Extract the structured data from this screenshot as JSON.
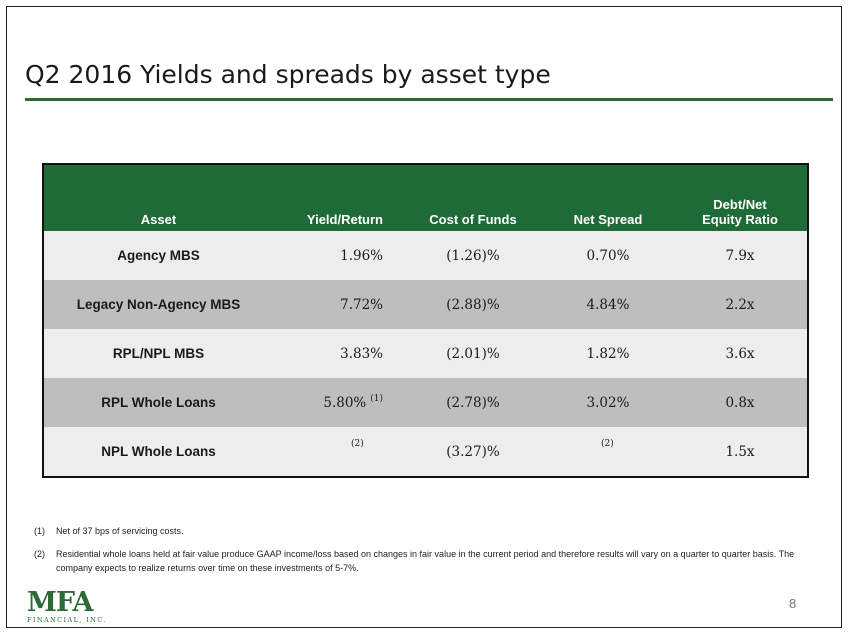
{
  "title": "Q2 2016 Yields and spreads by asset type",
  "table": {
    "headers": {
      "asset": "Asset",
      "yield": "Yield/Return",
      "cost": "Cost of Funds",
      "spread": "Net Spread",
      "debt_line1": "Debt/Net",
      "debt_line2": "Equity Ratio"
    },
    "rows": [
      {
        "asset": "Agency MBS",
        "yield": "1.96%",
        "yield_note": "",
        "cost": "(1.26)%",
        "spread": "0.70%",
        "spread_note": "",
        "debt": "7.9x"
      },
      {
        "asset": "Legacy Non-Agency MBS",
        "yield": "7.72%",
        "yield_note": "",
        "cost": "(2.88)%",
        "spread": "4.84%",
        "spread_note": "",
        "debt": "2.2x"
      },
      {
        "asset": "RPL/NPL MBS",
        "yield": "3.83%",
        "yield_note": "",
        "cost": "(2.01)%",
        "spread": "1.82%",
        "spread_note": "",
        "debt": "3.6x"
      },
      {
        "asset": "RPL Whole Loans",
        "yield": "5.80%",
        "yield_note": "(1)",
        "cost": "(2.78)%",
        "spread": "3.02%",
        "spread_note": "",
        "debt": "0.8x"
      },
      {
        "asset": "NPL Whole Loans",
        "yield": "",
        "yield_note": "(2)",
        "cost": "(3.27)%",
        "spread": "",
        "spread_note": "(2)",
        "debt": "1.5x"
      }
    ]
  },
  "footnotes": [
    {
      "index": "(1)",
      "text": "Net of 37 bps of servicing costs."
    },
    {
      "index": "(2)",
      "text": "Residential whole loans held at fair value produce GAAP income/loss based on changes in fair value in the current period and therefore results will vary on a quarter to quarter basis. The company expects to realize returns over time on these investments of 5-7%."
    }
  ],
  "logo": {
    "main": "MFA",
    "sub": "FINANCIAL, INC."
  },
  "page_number": "8",
  "colors": {
    "header_green": "#1e6b37",
    "rule_green": "#2e6a36",
    "row_light": "#ededed",
    "row_dark": "#bebebe"
  }
}
